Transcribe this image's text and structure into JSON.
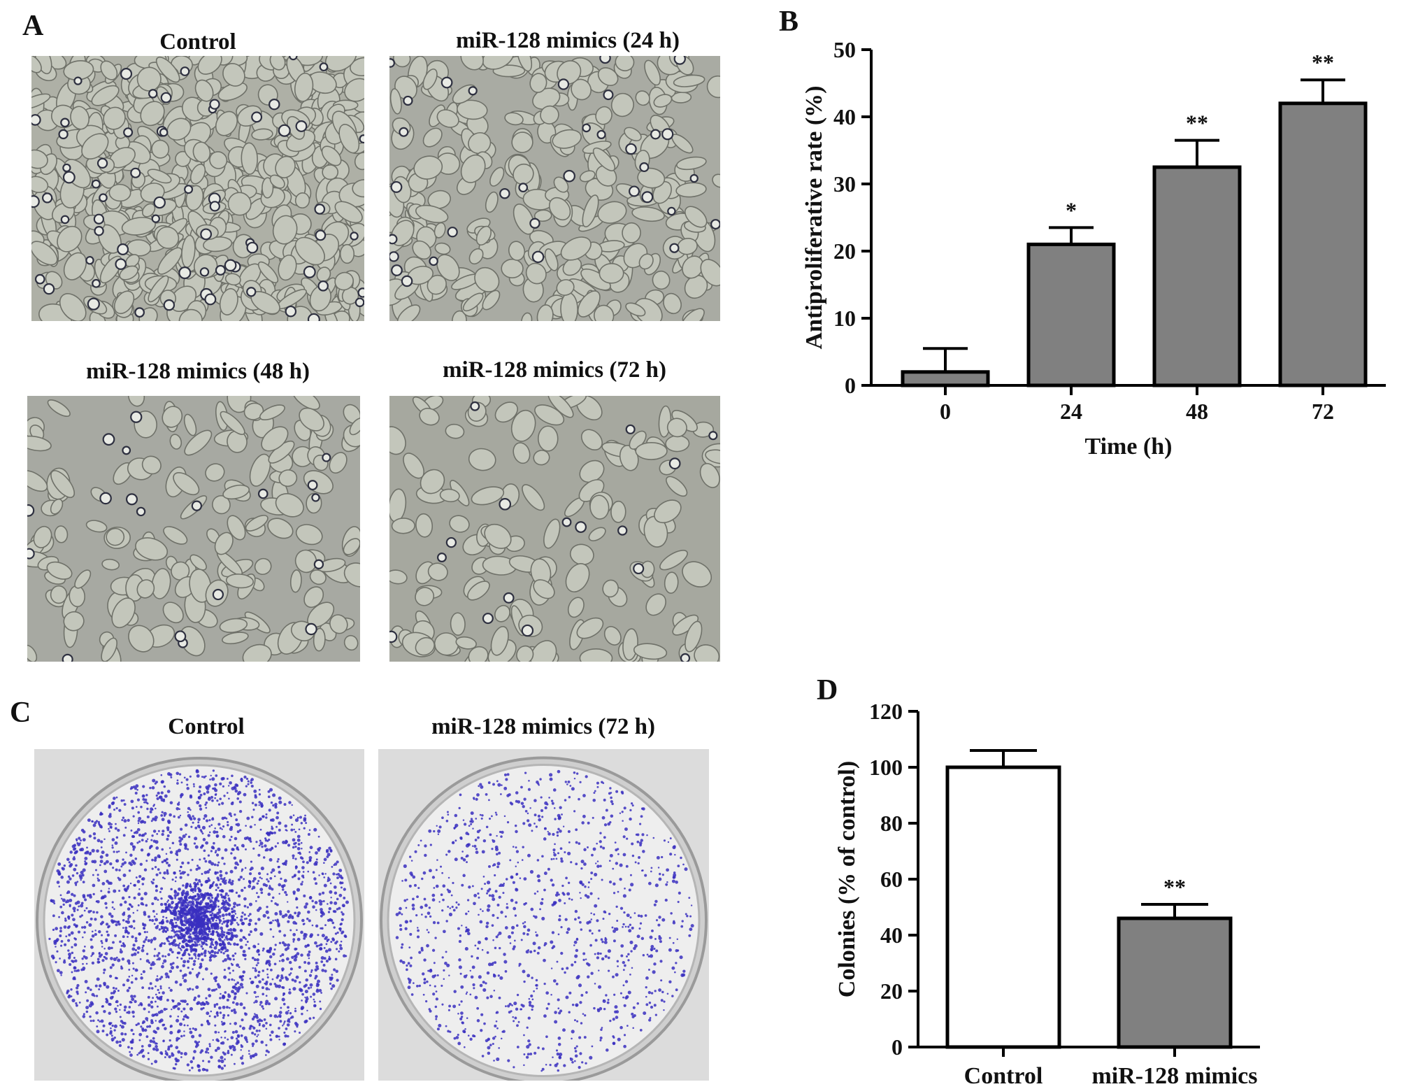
{
  "panels": {
    "A": {
      "letter": "A",
      "images": [
        {
          "title": "Control",
          "density": "high"
        },
        {
          "title": "miR-128 mimics (24 h)",
          "density": "medium"
        },
        {
          "title": "miR-128 mimics (48 h)",
          "density": "low"
        },
        {
          "title": "miR-128 mimics (72 h)",
          "density": "low"
        }
      ]
    },
    "B": {
      "letter": "B"
    },
    "C": {
      "letter": "C",
      "plates": [
        {
          "title": "Control",
          "density": "high"
        },
        {
          "title": "miR-128 mimics (72 h)",
          "density": "low"
        }
      ]
    },
    "D": {
      "letter": "D"
    }
  },
  "colors": {
    "bar_gray": "#808080",
    "bar_white": "#ffffff",
    "stain": "#3a2fc0",
    "micro_bg": "#a9aba2"
  },
  "chart_data": [
    {
      "id": "B",
      "type": "bar",
      "categories": [
        "0",
        "24",
        "48",
        "72"
      ],
      "values": [
        2,
        21,
        32.5,
        42
      ],
      "errors": [
        3.5,
        2.5,
        4,
        3.5
      ],
      "annotations": [
        "",
        "*",
        "**",
        "**"
      ],
      "xlabel": "Time (h)",
      "ylabel": "Antiproliferative rate (%)",
      "ylim": [
        0,
        50
      ],
      "yticks": [
        0,
        10,
        20,
        30,
        40,
        50
      ],
      "bar_color": "#808080",
      "grid": false
    },
    {
      "id": "D",
      "type": "bar",
      "categories": [
        "Control",
        "miR-128 mimics"
      ],
      "values": [
        100,
        46
      ],
      "errors": [
        6,
        5
      ],
      "annotations": [
        "",
        "**"
      ],
      "xlabel": "",
      "ylabel": "Colonies (% of control)",
      "ylim": [
        0,
        120
      ],
      "yticks": [
        0,
        20,
        40,
        60,
        80,
        100,
        120
      ],
      "bar_colors": [
        "#ffffff",
        "#808080"
      ],
      "grid": false
    }
  ]
}
